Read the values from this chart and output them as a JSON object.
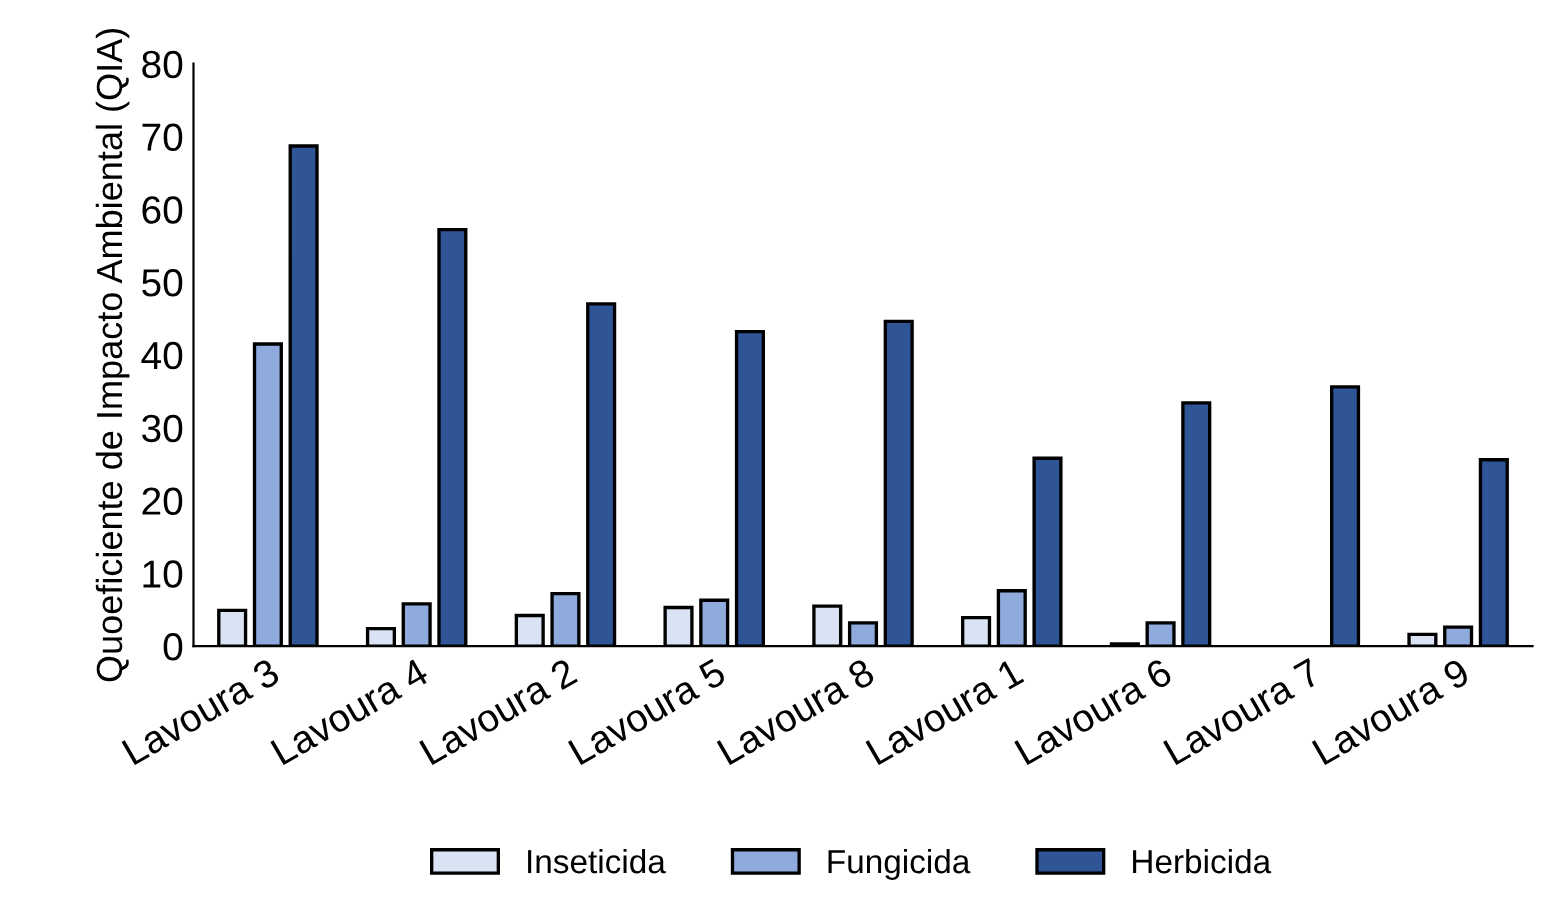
{
  "chart_data": {
    "type": "bar",
    "ylabel": "Quoeficiente de Impacto Ambiental (QIA)",
    "categories": [
      "Lavoura 3",
      "Lavoura 4",
      "Lavoura 2",
      "Lavoura 5",
      "Lavoura 8",
      "Lavoura 1",
      "Lavoura 6",
      "Lavoura 7",
      "Lavoura 9"
    ],
    "series": [
      {
        "name": "Inseticida",
        "color": "#dae3f3",
        "values": [
          4.9,
          2.4,
          4.2,
          5.3,
          5.5,
          3.9,
          0.3,
          null,
          1.6
        ]
      },
      {
        "name": "Fungicida",
        "color": "#8faadc",
        "values": [
          41.5,
          5.8,
          7.2,
          6.3,
          3.2,
          7.6,
          3.2,
          null,
          2.6
        ]
      },
      {
        "name": "Herbicida",
        "color": "#2f5597",
        "values": [
          68.7,
          57.2,
          47.0,
          43.2,
          44.6,
          25.8,
          33.4,
          35.6,
          25.6
        ]
      }
    ],
    "ylim": [
      0,
      80
    ],
    "yticks": [
      0,
      10,
      20,
      30,
      40,
      50,
      60,
      70,
      80
    ],
    "grid": false,
    "legend": "bottom"
  }
}
